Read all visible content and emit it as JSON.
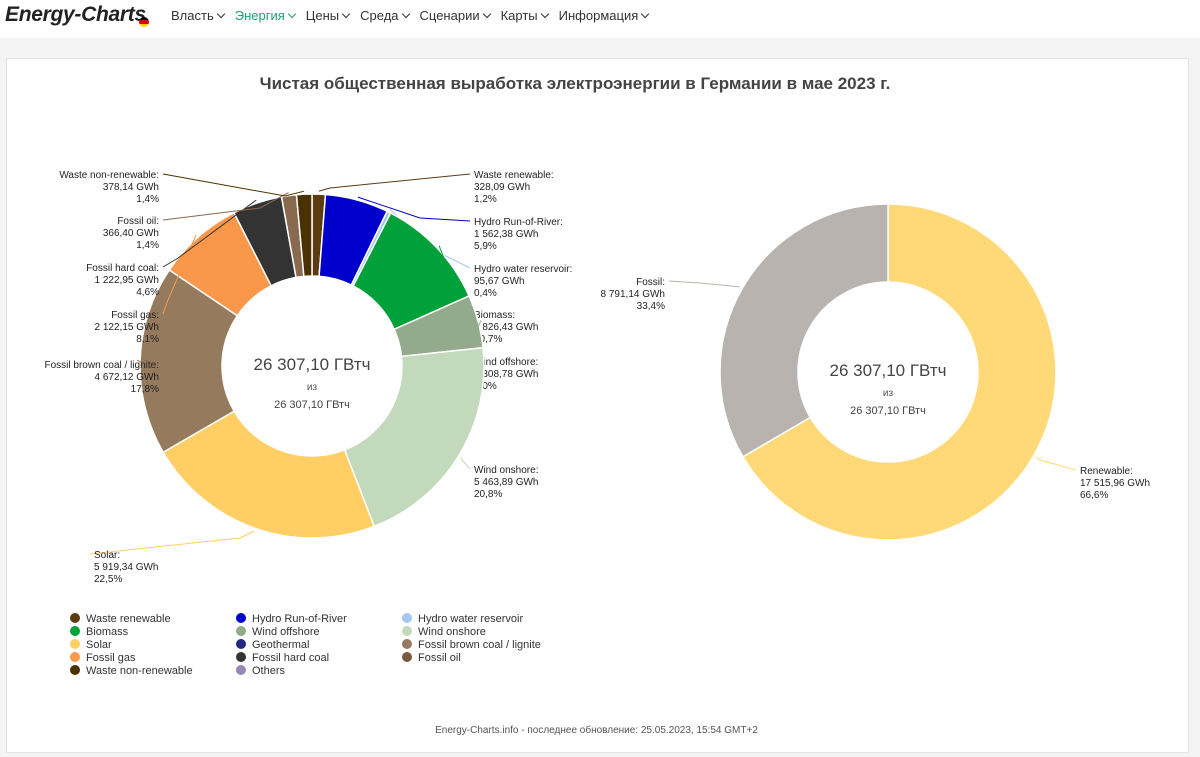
{
  "nav": {
    "brand_a": "Energy",
    "brand_dash": "-",
    "brand_b": "Charts",
    "items": [
      {
        "label": "Власть"
      },
      {
        "label": "Энергия"
      },
      {
        "label": "Цены"
      },
      {
        "label": "Среда"
      },
      {
        "label": "Сценарии"
      },
      {
        "label": "Карты"
      },
      {
        "label": "Информация"
      }
    ]
  },
  "title": "Чистая общественная выработка электроэнергии в Германии в мае 2023 г.",
  "footer": "Energy-Charts.info - последнее обновление: 25.05.2023, 15:54 GMT+2",
  "colors": {
    "active_menu": "#1e9e73",
    "flag": [
      "#000000",
      "#dd0000",
      "#ffce00"
    ]
  },
  "chart_data": [
    {
      "type": "pie",
      "subtype": "donut",
      "center_value": "26 307,10 ГВтч",
      "center_of": "из",
      "center_total": "26 307,10 ГВтч",
      "slices": [
        {
          "name": "Waste renewable",
          "value_text": "328,09 GWh",
          "percent_text": "1,2%",
          "value": 328.09,
          "color": "#5c3a12"
        },
        {
          "name": "Hydro Run-of-River",
          "value_text": "1 562,38 GWh",
          "percent_text": "5,9%",
          "value": 1562.38,
          "color": "#0000cc"
        },
        {
          "name": "Hydro water reservoir",
          "value_text": "95,67 GWh",
          "percent_text": "0,4%",
          "value": 95.67,
          "color": "#a6c8ef"
        },
        {
          "name": "Biomass",
          "value_text": "2 826,43 GWh",
          "percent_text": "10,7%",
          "value": 2826.43,
          "color": "#00a03a"
        },
        {
          "name": "Wind offshore",
          "value_text": "1 308,78 GWh",
          "percent_text": "5,0%",
          "value": 1308.78,
          "color": "#93ab8c"
        },
        {
          "name": "Wind onshore",
          "value_text": "5 463,89 GWh",
          "percent_text": "20,8%",
          "value": 5463.89,
          "color": "#c3d9bb"
        },
        {
          "name": "Solar",
          "value_text": "5 919,34 GWh",
          "percent_text": "22,5%",
          "value": 5919.34,
          "color": "#ffcf66"
        },
        {
          "name": "Fossil brown coal / lignite",
          "value_text": "4 672,12 GWh",
          "percent_text": "17,8%",
          "value": 4672.12,
          "color": "#967a5e"
        },
        {
          "name": "Fossil gas",
          "value_text": "2 122,15 GWh",
          "percent_text": "8,1%",
          "value": 2122.15,
          "color": "#f9984a"
        },
        {
          "name": "Fossil hard coal",
          "value_text": "1 222,95 GWh",
          "percent_text": "4,6%",
          "value": 1222.95,
          "color": "#333333"
        },
        {
          "name": "Fossil oil",
          "value_text": "366,40 GWh",
          "percent_text": "1,4%",
          "value": 366.4,
          "color": "#8a6a4e"
        },
        {
          "name": "Waste non-renewable",
          "value_text": "378,14 GWh",
          "percent_text": "1,4%",
          "value": 378.14,
          "color": "#4a3100"
        }
      ],
      "legend": [
        {
          "name": "Waste renewable",
          "color": "#5c3a12"
        },
        {
          "name": "Hydro Run-of-River",
          "color": "#0000cc"
        },
        {
          "name": "Hydro water reservoir",
          "color": "#a6c8ef"
        },
        {
          "name": "Biomass",
          "color": "#00a03a"
        },
        {
          "name": "Wind offshore",
          "color": "#93ab8c"
        },
        {
          "name": "Wind onshore",
          "color": "#c3d9bb"
        },
        {
          "name": "Solar",
          "color": "#ffcf66"
        },
        {
          "name": "Geothermal",
          "color": "#202880"
        },
        {
          "name": "Fossil brown coal / lignite",
          "color": "#967a5e"
        },
        {
          "name": "Fossil gas",
          "color": "#f9984a"
        },
        {
          "name": "Fossil hard coal",
          "color": "#333333"
        },
        {
          "name": "Fossil oil",
          "color": "#7a5a3e"
        },
        {
          "name": "Waste non-renewable",
          "color": "#4a3100"
        },
        {
          "name": "Others",
          "color": "#9a86b5"
        }
      ]
    },
    {
      "type": "pie",
      "subtype": "donut",
      "center_value": "26 307,10 ГВтч",
      "center_of": "из",
      "center_total": "26 307,10 ГВтч",
      "slices": [
        {
          "name": "Renewable",
          "value_text": "17 515,96 GWh",
          "percent_text": "66,6%",
          "value": 17515.96,
          "color": "#ffd878"
        },
        {
          "name": "Fossil",
          "value_text": "8 791,14 GWh",
          "percent_text": "33,4%",
          "value": 8791.14,
          "color": "#b8b3ae"
        }
      ]
    }
  ]
}
